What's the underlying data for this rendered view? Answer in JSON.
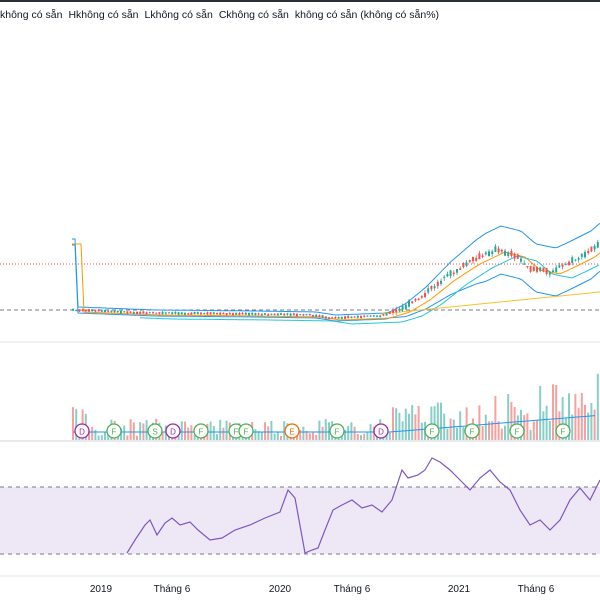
{
  "legend": {
    "items": [
      "không có sẵn",
      "Hkhông có sẵn",
      "Lkhông có sẵn",
      "Ckhông có sẵn",
      "không có sẵn (không có sẵn%)"
    ]
  },
  "time_axis": {
    "labels": [
      "2019",
      "Tháng 6",
      "2020",
      "Tháng 6",
      "2021",
      "Tháng 6"
    ]
  },
  "colors": {
    "up": "#26a69a",
    "down": "#ef5350",
    "rsi_line": "#7e57c2",
    "rsi_band": "#ede7f6",
    "bb_upper": "#2196f3",
    "ma_orange": "#ff9800",
    "ma_yellow": "#fbc02d",
    "ma_teal": "#26c6da"
  },
  "chart_data": {
    "type": "candlestick",
    "panes": [
      "price",
      "volume",
      "rsi"
    ],
    "x_labels": [
      "2019",
      "Tháng 6",
      "2020",
      "Tháng 6",
      "2021",
      "Tháng 6"
    ],
    "rsi_levels": [
      70,
      30
    ],
    "event_markers": [
      "D",
      "F",
      "S",
      "D",
      "F",
      "F",
      "F",
      "E",
      "F",
      "D",
      "F",
      "F",
      "F",
      "F"
    ]
  }
}
